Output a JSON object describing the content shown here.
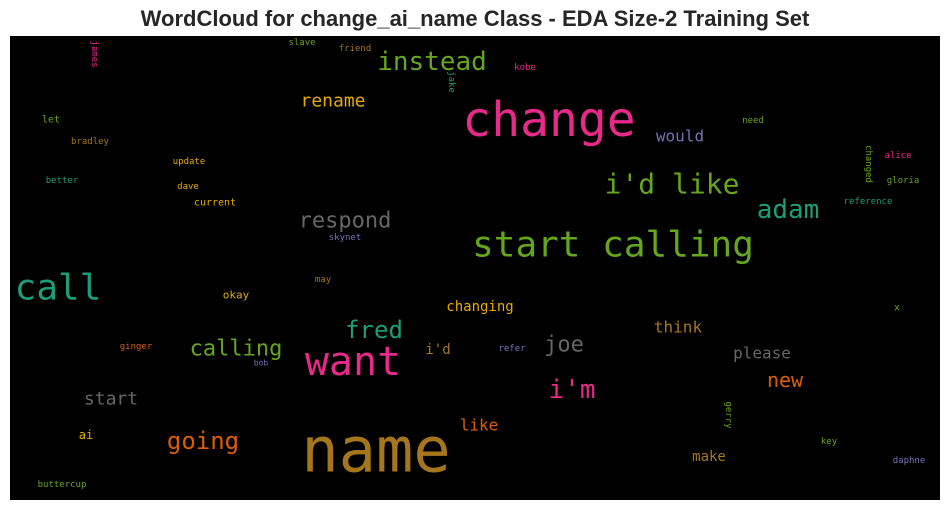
{
  "title": "WordCloud for change_ai_name Class - EDA Size-2 Training Set",
  "chart_data": {
    "type": "wordcloud",
    "title": "WordCloud for change_ai_name Class - EDA Size-2 Training Set",
    "background": "#000000",
    "colormap": [
      "#1b9e77",
      "#d95f02",
      "#7570b3",
      "#e7298a",
      "#66a61e",
      "#e6ab02",
      "#a6761d",
      "#666666"
    ],
    "words": [
      {
        "text": "name",
        "color": "#a6761d"
      },
      {
        "text": "change",
        "color": "#e7298a"
      },
      {
        "text": "start calling",
        "color": "#66a61e"
      },
      {
        "text": "want",
        "color": "#e7298a"
      },
      {
        "text": "call",
        "color": "#1b9e77"
      },
      {
        "text": "i'd like",
        "color": "#66a61e"
      },
      {
        "text": "instead",
        "color": "#66a61e"
      },
      {
        "text": "adam",
        "color": "#1b9e77"
      },
      {
        "text": "respond",
        "color": "#666666"
      },
      {
        "text": "i'm",
        "color": "#e7298a"
      },
      {
        "text": "fred",
        "color": "#1b9e77"
      },
      {
        "text": "calling",
        "color": "#66a61e"
      },
      {
        "text": "going",
        "color": "#d95f02"
      },
      {
        "text": "joe",
        "color": "#666666"
      },
      {
        "text": "rename",
        "color": "#e6ab02"
      },
      {
        "text": "new",
        "color": "#d95f02"
      },
      {
        "text": "start",
        "color": "#666666"
      },
      {
        "text": "think",
        "color": "#a6761d"
      },
      {
        "text": "please",
        "color": "#666666"
      },
      {
        "text": "would",
        "color": "#7570b3"
      },
      {
        "text": "like",
        "color": "#d95f02"
      },
      {
        "text": "changing",
        "color": "#e6ab02"
      },
      {
        "text": "i'd",
        "color": "#a6761d"
      },
      {
        "text": "make",
        "color": "#a6761d"
      },
      {
        "text": "ai",
        "color": "#e6ab02"
      },
      {
        "text": "okay",
        "color": "#e6ab02"
      },
      {
        "text": "current",
        "color": "#e6ab02"
      },
      {
        "text": "let",
        "color": "#66a61e"
      },
      {
        "text": "update",
        "color": "#e6ab02"
      },
      {
        "text": "bradley",
        "color": "#a6761d"
      },
      {
        "text": "dave",
        "color": "#e6ab02"
      },
      {
        "text": "better",
        "color": "#1b9e77"
      },
      {
        "text": "skynet",
        "color": "#7570b3"
      },
      {
        "text": "may",
        "color": "#a6761d"
      },
      {
        "text": "ginger",
        "color": "#d95f02"
      },
      {
        "text": "bob",
        "color": "#7570b3"
      },
      {
        "text": "refer",
        "color": "#7570b3"
      },
      {
        "text": "buttercup",
        "color": "#66a61e"
      },
      {
        "text": "slave",
        "color": "#66a61e"
      },
      {
        "text": "friend",
        "color": "#a6761d"
      },
      {
        "text": "james",
        "color": "#e7298a"
      },
      {
        "text": "jake",
        "color": "#1b9e77"
      },
      {
        "text": "kobe",
        "color": "#e7298a"
      },
      {
        "text": "need",
        "color": "#66a61e"
      },
      {
        "text": "changed",
        "color": "#66a61e"
      },
      {
        "text": "alice",
        "color": "#e7298a"
      },
      {
        "text": "gloria",
        "color": "#66a61e"
      },
      {
        "text": "reference",
        "color": "#1b9e77"
      },
      {
        "text": "x",
        "color": "#66a61e"
      },
      {
        "text": "gerry",
        "color": "#66a61e"
      },
      {
        "text": "key",
        "color": "#66a61e"
      },
      {
        "text": "daphne",
        "color": "#7570b3"
      }
    ]
  }
}
